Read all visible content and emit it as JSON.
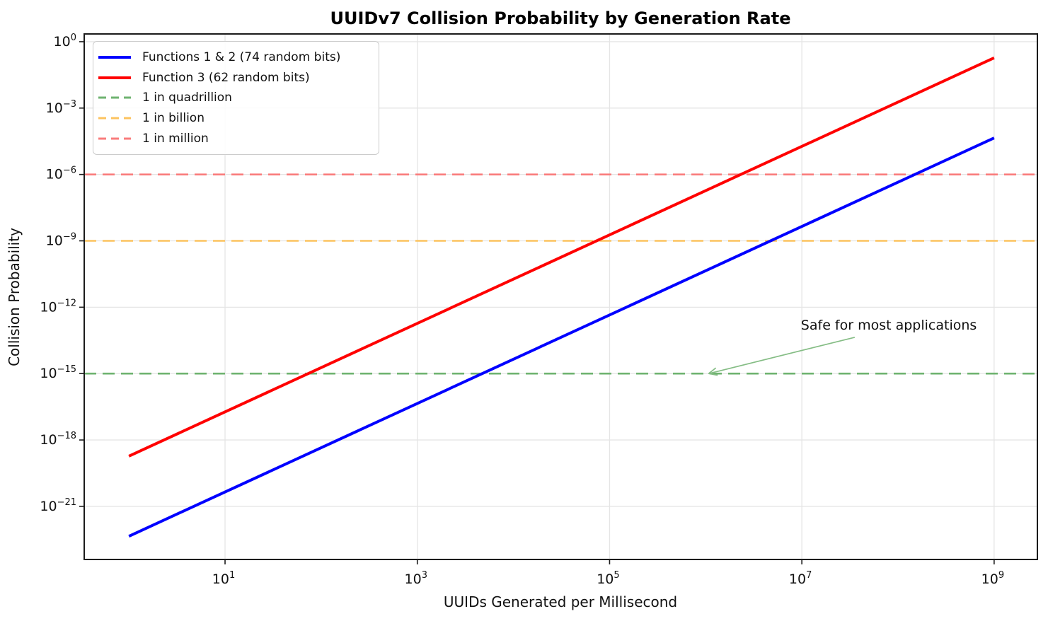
{
  "title": "UUIDv7 Collision Probability by Generation Rate",
  "axes": {
    "xlabel": "UUIDs Generated per Millisecond",
    "ylabel": "Collision Probability"
  },
  "chart_data": {
    "type": "line",
    "xscale": "log",
    "yscale": "log",
    "xlim_log10": [
      -0.465,
      9.45
    ],
    "ylim_log10": [
      -23.4,
      0.35
    ],
    "x_tick_exponents": [
      1,
      3,
      5,
      7,
      9
    ],
    "y_tick_exponents": [
      0,
      -3,
      -6,
      -9,
      -12,
      -15,
      -18,
      -21
    ],
    "grid": true,
    "grid_color": "#e5e5e5",
    "series": [
      {
        "name": "Functions 1 & 2 (74 random bits)",
        "color": "#0000ff",
        "style": "solid",
        "width": 4,
        "points_log10": [
          [
            0,
            -22.35
          ],
          [
            9,
            -4.35
          ]
        ]
      },
      {
        "name": "Function 3 (62 random bits)",
        "color": "#ff0000",
        "style": "solid",
        "width": 4,
        "points_log10": [
          [
            0,
            -18.73
          ],
          [
            9,
            -0.73
          ]
        ]
      }
    ],
    "thresholds": [
      {
        "name": "1 in quadrillion",
        "y_log10": -15,
        "color": "#6fb370",
        "style": "dashed",
        "width": 2.6
      },
      {
        "name": "1 in billion",
        "y_log10": -9,
        "color": "#fcc35f",
        "style": "dashed",
        "width": 2.6
      },
      {
        "name": "1 in million",
        "y_log10": -6,
        "color": "#f97c7c",
        "style": "dashed",
        "width": 2.6
      }
    ],
    "legend_position": "upper-left",
    "annotation": {
      "text": "Safe for most applications",
      "text_log10": [
        6.99,
        -12.82
      ],
      "arrow_start_log10": [
        7.55,
        -13.36
      ],
      "arrow_tip_log10": [
        6.03,
        -15.0
      ],
      "color": "#85bd85"
    }
  }
}
